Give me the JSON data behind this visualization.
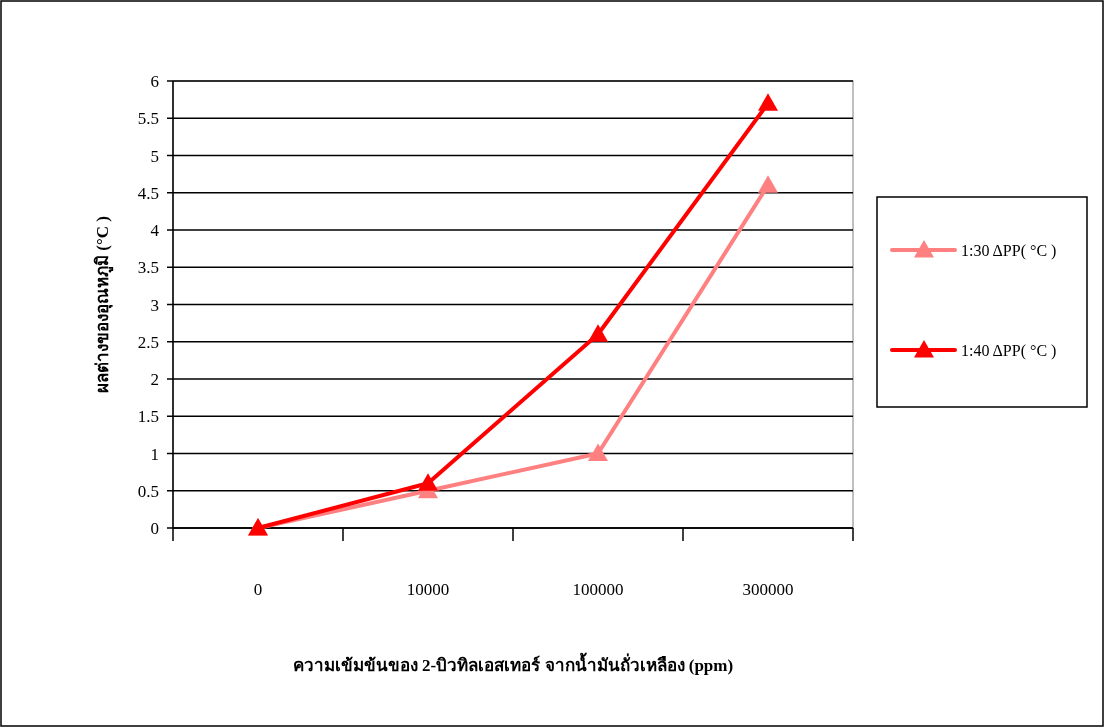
{
  "chart_data": {
    "type": "line",
    "xlabel": "ความเข้มข้นของ 2-บิวทิลเอสเทอร์ จากน้ำมันถั่วเหลือง (ppm)",
    "ylabel": "ผลต่างของอุณหภูมิ (°C )",
    "categories": [
      "0",
      "10000",
      "100000",
      "300000"
    ],
    "series": [
      {
        "name": "1:30 ΔPP( °C )",
        "color": "#ff8080",
        "values": [
          0,
          0.5,
          1,
          4.6
        ]
      },
      {
        "name": "1:40 ΔPP( °C )",
        "color": "#ff0000",
        "values": [
          0,
          0.6,
          2.6,
          5.7
        ]
      }
    ],
    "ylim": [
      0,
      6
    ],
    "yticks": [
      0,
      0.5,
      1,
      1.5,
      2,
      2.5,
      3,
      3.5,
      4,
      4.5,
      5,
      5.5,
      6
    ],
    "grid": "y",
    "legend": "right",
    "marker": "triangle",
    "line_style": "solid"
  }
}
